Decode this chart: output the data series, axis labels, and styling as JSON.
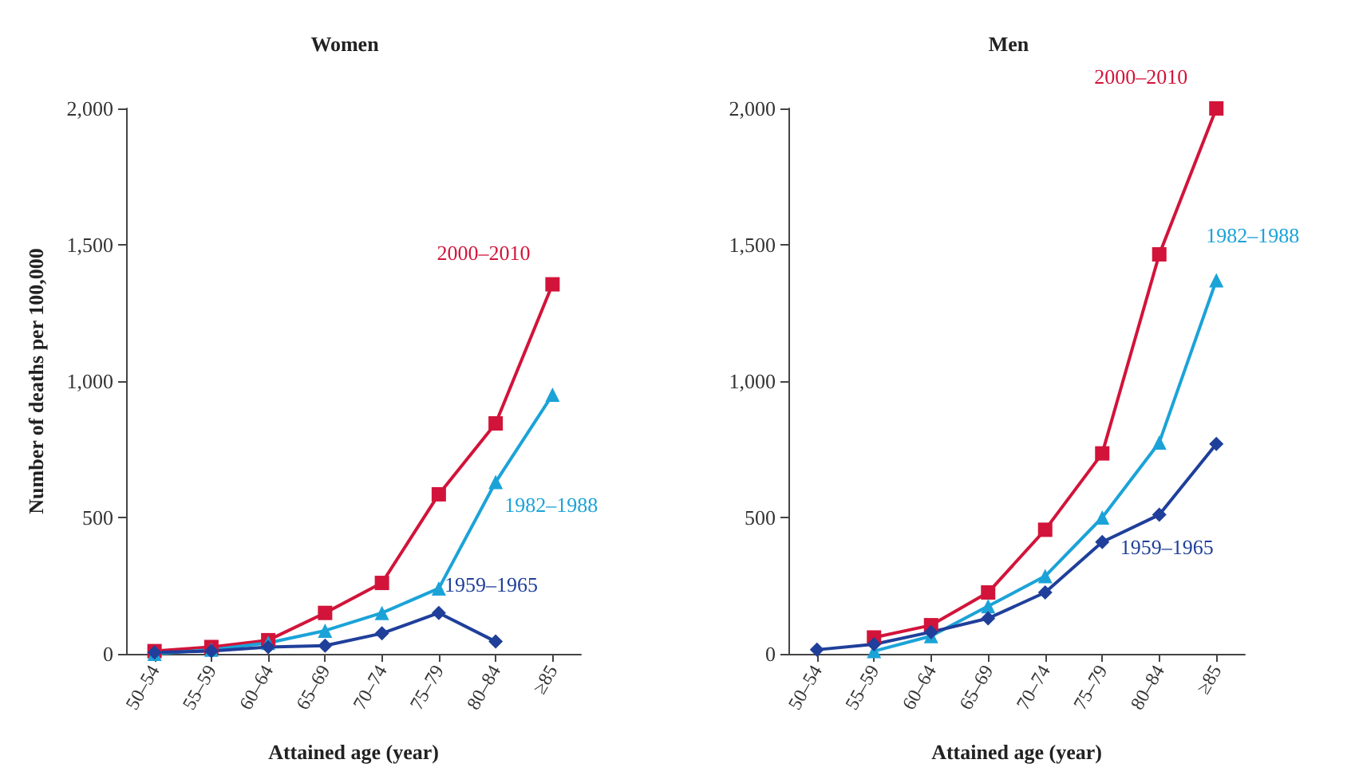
{
  "chart_data": [
    {
      "type": "line",
      "title": "Women",
      "xlabel": "Attained age (year)",
      "ylabel": "Number of deaths per 100,000",
      "categories": [
        "50–54",
        "55–59",
        "60–64",
        "65–69",
        "70–74",
        "75–79",
        "80–84",
        "≥85"
      ],
      "ylim": [
        0,
        2000
      ],
      "yticks": [
        0,
        {
          "value": 500,
          "label": "500"
        },
        {
          "value": 1000,
          "label": "1,000"
        },
        {
          "value": 1500,
          "label": "1,500"
        },
        {
          "value": 2000,
          "label": "2,000"
        }
      ],
      "grid": false,
      "legend": false,
      "series": [
        {
          "name": "2000–2010",
          "color": "#d2143a",
          "marker": "square",
          "values": [
            10,
            25,
            50,
            150,
            260,
            585,
            845,
            1355
          ]
        },
        {
          "name": "1982–1988",
          "color": "#1ba3d8",
          "marker": "triangle",
          "values": [
            0,
            15,
            40,
            85,
            150,
            240,
            630,
            950
          ]
        },
        {
          "name": "1959–1965",
          "color": "#1f3f9a",
          "marker": "diamond",
          "values": [
            5,
            10,
            25,
            30,
            75,
            150,
            45,
            null
          ]
        }
      ]
    },
    {
      "type": "line",
      "title": "Men",
      "xlabel": "Attained age (year)",
      "categories": [
        "50–54",
        "55–59",
        "60–64",
        "65–69",
        "70–74",
        "75–79",
        "80–84",
        "≥85"
      ],
      "ylim": [
        0,
        2000
      ],
      "yticks": [
        0,
        {
          "value": 500,
          "label": "500"
        },
        {
          "value": 1000,
          "label": "1,000"
        },
        {
          "value": 1500,
          "label": "1,500"
        },
        {
          "value": 2000,
          "label": "2,000"
        }
      ],
      "grid": false,
      "legend": false,
      "series": [
        {
          "name": "2000–2010",
          "color": "#d2143a",
          "marker": "square",
          "values": [
            null,
            60,
            105,
            225,
            455,
            735,
            1465,
            2000
          ]
        },
        {
          "name": "1982–1988",
          "color": "#1ba3d8",
          "marker": "triangle",
          "values": [
            null,
            10,
            65,
            175,
            285,
            500,
            775,
            1370
          ]
        },
        {
          "name": "1959–1965",
          "color": "#1f3f9a",
          "marker": "diamond",
          "values": [
            15,
            35,
            80,
            130,
            225,
            410,
            510,
            770
          ]
        }
      ]
    }
  ]
}
